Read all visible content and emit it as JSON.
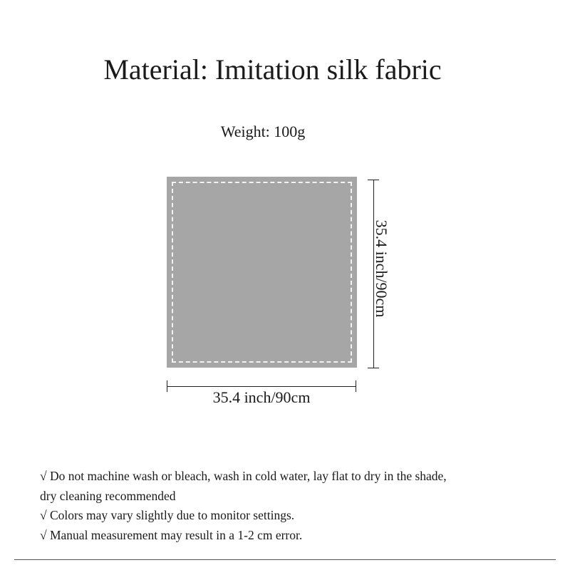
{
  "title": "Material: Imitation silk fabric",
  "weight": "Weight: 100g",
  "product": {
    "swatch_color": "#a6a6a6",
    "stitch_color": "#f2f2f2",
    "height_label": "35.4 inch/90cm",
    "width_label": "35.4 inch/90cm"
  },
  "notes": [
    "√ Do not machine wash or bleach, wash in cold water, lay flat to dry in the shade,",
    "dry cleaning recommended",
    "√ Colors may vary slightly due to monitor settings.",
    "√ Manual measurement may result in a 1-2 cm error."
  ]
}
